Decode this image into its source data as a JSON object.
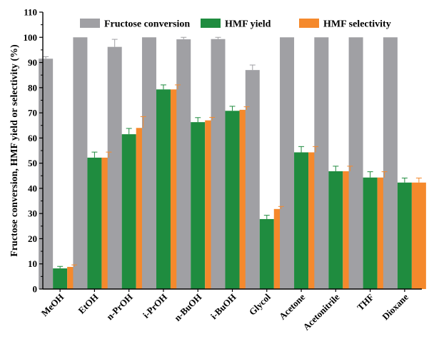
{
  "chart_data": {
    "type": "bar",
    "title": "",
    "xlabel": "",
    "ylabel": "Fructose conversion, HMF yield or selectivity  (%)",
    "ylim": [
      0,
      110
    ],
    "yticks": [
      0,
      10,
      20,
      30,
      40,
      50,
      60,
      70,
      80,
      90,
      100,
      110
    ],
    "grid": false,
    "legend_position": "top",
    "categories": [
      "MeOH",
      "EtOH",
      "n-PrOH",
      "i-PrOH",
      "n-BuOH",
      "i-BuOH",
      "Glycol",
      "Acetone",
      "Acetonitrile",
      "THF",
      "Dioxane"
    ],
    "series": [
      {
        "name": "Fructose conversion",
        "color": "#a0a0a4",
        "values": [
          91.5,
          100,
          96.2,
          100,
          99.2,
          99.3,
          87.0,
          100,
          100,
          100,
          100
        ],
        "errors": [
          0.8,
          0,
          3.0,
          0,
          0.8,
          0.7,
          2.0,
          0,
          0,
          0,
          0
        ]
      },
      {
        "name": "HMF yield",
        "color": "#1f8c3f",
        "values": [
          8.2,
          52.2,
          61.5,
          79.3,
          66.3,
          70.8,
          27.8,
          54.3,
          46.8,
          44.3,
          42.3
        ],
        "errors": [
          0.8,
          2.2,
          2.3,
          1.8,
          1.8,
          1.8,
          1.5,
          2.3,
          2.0,
          2.3,
          1.8
        ]
      },
      {
        "name": "HMF selectivity",
        "color": "#f5892c",
        "values": [
          8.8,
          52.2,
          64.0,
          79.3,
          67.0,
          71.2,
          31.8,
          54.3,
          46.8,
          44.3,
          42.3
        ],
        "errors": [
          0.8,
          2.2,
          4.5,
          1.8,
          1.2,
          1.2,
          1.0,
          2.3,
          2.0,
          2.3,
          1.8
        ]
      }
    ]
  }
}
